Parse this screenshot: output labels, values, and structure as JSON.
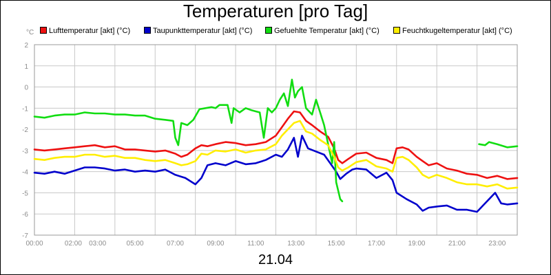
{
  "chart_data": {
    "type": "line",
    "title": "Temperaturen [pro Tag]",
    "y_unit": "°C",
    "xlabel": "21.04",
    "ylim": [
      -7,
      2
    ],
    "yticks": [
      -7,
      -6,
      -5,
      -4,
      -3,
      -2,
      -1,
      0,
      1,
      2
    ],
    "xlim_hours": [
      0,
      24
    ],
    "x_tick_labels": [
      "00:00",
      "02:00",
      "03:00",
      "05:00",
      "07:00",
      "09:00",
      "11:00",
      "13:00",
      "15:00",
      "17:00",
      "19:00",
      "21:00",
      "23:00"
    ],
    "grid": true,
    "legend_position": "top",
    "series": [
      {
        "name": "Lufttemperatur [akt] (°C)",
        "color": "#ee1111",
        "points": [
          [
            0,
            -2.95
          ],
          [
            0.5,
            -3.0
          ],
          [
            1,
            -2.95
          ],
          [
            1.5,
            -2.9
          ],
          [
            2,
            -2.85
          ],
          [
            2.5,
            -2.8
          ],
          [
            3,
            -2.75
          ],
          [
            3.5,
            -2.85
          ],
          [
            4,
            -2.8
          ],
          [
            4.5,
            -2.95
          ],
          [
            5,
            -2.95
          ],
          [
            5.5,
            -3.0
          ],
          [
            6,
            -3.05
          ],
          [
            6.5,
            -3.0
          ],
          [
            7,
            -3.15
          ],
          [
            7.3,
            -3.3
          ],
          [
            7.6,
            -3.2
          ],
          [
            8,
            -2.9
          ],
          [
            8.3,
            -2.75
          ],
          [
            8.6,
            -2.8
          ],
          [
            9,
            -2.7
          ],
          [
            9.5,
            -2.6
          ],
          [
            10,
            -2.65
          ],
          [
            10.5,
            -2.75
          ],
          [
            11,
            -2.7
          ],
          [
            11.5,
            -2.6
          ],
          [
            12,
            -2.3
          ],
          [
            12.3,
            -1.9
          ],
          [
            12.6,
            -1.5
          ],
          [
            12.9,
            -1.15
          ],
          [
            13.2,
            -1.2
          ],
          [
            13.5,
            -1.6
          ],
          [
            13.8,
            -1.8
          ],
          [
            14.2,
            -2.1
          ],
          [
            14.6,
            -2.35
          ],
          [
            14.9,
            -2.9
          ],
          [
            15.1,
            -3.45
          ],
          [
            15.3,
            -3.6
          ],
          [
            15.6,
            -3.4
          ],
          [
            16,
            -3.15
          ],
          [
            16.5,
            -3.1
          ],
          [
            17,
            -3.35
          ],
          [
            17.5,
            -3.45
          ],
          [
            17.8,
            -3.6
          ],
          [
            18,
            -2.9
          ],
          [
            18.3,
            -2.85
          ],
          [
            18.6,
            -2.95
          ],
          [
            19,
            -3.3
          ],
          [
            19.3,
            -3.5
          ],
          [
            19.6,
            -3.7
          ],
          [
            20,
            -3.6
          ],
          [
            20.5,
            -3.85
          ],
          [
            21,
            -3.95
          ],
          [
            21.5,
            -4.1
          ],
          [
            22,
            -4.15
          ],
          [
            22.5,
            -4.3
          ],
          [
            23,
            -4.2
          ],
          [
            23.5,
            -4.35
          ],
          [
            24,
            -4.3
          ]
        ]
      },
      {
        "name": "Taupunkttemperatur [akt] (°C)",
        "color": "#0000cc",
        "points": [
          [
            0,
            -4.05
          ],
          [
            0.5,
            -4.1
          ],
          [
            1,
            -4.0
          ],
          [
            1.5,
            -4.1
          ],
          [
            2,
            -3.95
          ],
          [
            2.5,
            -3.8
          ],
          [
            3,
            -3.8
          ],
          [
            3.5,
            -3.85
          ],
          [
            4,
            -3.95
          ],
          [
            4.5,
            -3.9
          ],
          [
            5,
            -4.0
          ],
          [
            5.5,
            -3.95
          ],
          [
            6,
            -4.0
          ],
          [
            6.5,
            -3.9
          ],
          [
            7,
            -4.15
          ],
          [
            7.5,
            -4.3
          ],
          [
            8,
            -4.6
          ],
          [
            8.3,
            -4.3
          ],
          [
            8.6,
            -3.7
          ],
          [
            9,
            -3.6
          ],
          [
            9.5,
            -3.7
          ],
          [
            10,
            -3.5
          ],
          [
            10.5,
            -3.65
          ],
          [
            11,
            -3.6
          ],
          [
            11.5,
            -3.45
          ],
          [
            12,
            -3.2
          ],
          [
            12.3,
            -3.3
          ],
          [
            12.6,
            -2.95
          ],
          [
            12.9,
            -2.4
          ],
          [
            13.1,
            -3.3
          ],
          [
            13.3,
            -2.3
          ],
          [
            13.6,
            -2.9
          ],
          [
            14,
            -3.05
          ],
          [
            14.4,
            -3.2
          ],
          [
            14.7,
            -3.6
          ],
          [
            15,
            -4.0
          ],
          [
            15.2,
            -4.35
          ],
          [
            15.5,
            -4.1
          ],
          [
            15.8,
            -3.9
          ],
          [
            16,
            -3.85
          ],
          [
            16.5,
            -3.9
          ],
          [
            17,
            -4.3
          ],
          [
            17.5,
            -4.05
          ],
          [
            17.8,
            -4.4
          ],
          [
            18,
            -5.0
          ],
          [
            18.5,
            -5.3
          ],
          [
            19,
            -5.55
          ],
          [
            19.3,
            -5.85
          ],
          [
            19.6,
            -5.7
          ],
          [
            20,
            -5.65
          ],
          [
            20.5,
            -5.6
          ],
          [
            21,
            -5.8
          ],
          [
            21.5,
            -5.8
          ],
          [
            22,
            -5.9
          ],
          [
            22.3,
            -5.6
          ],
          [
            22.6,
            -5.3
          ],
          [
            22.9,
            -5.0
          ],
          [
            23.2,
            -5.5
          ],
          [
            23.5,
            -5.55
          ],
          [
            24,
            -5.5
          ]
        ]
      },
      {
        "name": "Gefuehlte Temperatur [akt] (°C)",
        "color": "#11dd11",
        "segments": [
          [
            [
              0,
              -1.4
            ],
            [
              0.5,
              -1.45
            ],
            [
              1,
              -1.35
            ],
            [
              1.5,
              -1.3
            ],
            [
              2,
              -1.3
            ],
            [
              2.5,
              -1.2
            ],
            [
              3,
              -1.25
            ],
            [
              3.5,
              -1.25
            ],
            [
              4,
              -1.3
            ],
            [
              4.5,
              -1.3
            ],
            [
              5,
              -1.35
            ],
            [
              5.5,
              -1.35
            ],
            [
              6,
              -1.5
            ],
            [
              6.5,
              -1.55
            ],
            [
              6.9,
              -1.6
            ],
            [
              7.0,
              -2.4
            ],
            [
              7.15,
              -2.75
            ],
            [
              7.3,
              -1.7
            ],
            [
              7.6,
              -1.8
            ],
            [
              7.9,
              -1.55
            ],
            [
              8.2,
              -1.05
            ],
            [
              8.5,
              -1.0
            ],
            [
              8.8,
              -0.95
            ],
            [
              9,
              -1.0
            ],
            [
              9.2,
              -0.85
            ],
            [
              9.6,
              -0.85
            ],
            [
              9.8,
              -1.7
            ],
            [
              9.9,
              -1.0
            ],
            [
              10.2,
              -1.2
            ],
            [
              10.5,
              -1.0
            ],
            [
              10.8,
              -1.1
            ],
            [
              11,
              -1.15
            ],
            [
              11.2,
              -1.2
            ],
            [
              11.4,
              -2.4
            ],
            [
              11.6,
              -1.0
            ],
            [
              11.8,
              -1.2
            ],
            [
              12,
              -1.0
            ],
            [
              12.2,
              -0.6
            ],
            [
              12.4,
              -0.3
            ],
            [
              12.6,
              -0.9
            ],
            [
              12.8,
              0.35
            ],
            [
              12.95,
              -0.5
            ],
            [
              13.1,
              -0.2
            ],
            [
              13.3,
              0.0
            ],
            [
              13.5,
              -1.0
            ],
            [
              13.8,
              -1.3
            ],
            [
              14.0,
              -0.6
            ],
            [
              14.2,
              -1.2
            ],
            [
              14.4,
              -1.8
            ],
            [
              14.6,
              -2.7
            ],
            [
              14.8,
              -3.6
            ],
            [
              14.9,
              -2.6
            ],
            [
              15.0,
              -4.5
            ],
            [
              15.2,
              -5.3
            ],
            [
              15.3,
              -5.4
            ]
          ],
          [
            [
              22.1,
              -2.7
            ],
            [
              22.4,
              -2.75
            ],
            [
              22.6,
              -2.6
            ],
            [
              23,
              -2.7
            ],
            [
              23.5,
              -2.85
            ],
            [
              24,
              -2.8
            ]
          ]
        ]
      },
      {
        "name": "Feuchtkugeltemperatur [akt] (°C)",
        "color": "#ffee00",
        "points": [
          [
            0,
            -3.4
          ],
          [
            0.5,
            -3.45
          ],
          [
            1,
            -3.35
          ],
          [
            1.5,
            -3.3
          ],
          [
            2,
            -3.3
          ],
          [
            2.5,
            -3.2
          ],
          [
            3,
            -3.2
          ],
          [
            3.5,
            -3.3
          ],
          [
            4,
            -3.25
          ],
          [
            4.5,
            -3.35
          ],
          [
            5,
            -3.35
          ],
          [
            5.5,
            -3.45
          ],
          [
            6,
            -3.5
          ],
          [
            6.5,
            -3.45
          ],
          [
            7,
            -3.6
          ],
          [
            7.3,
            -3.7
          ],
          [
            7.6,
            -3.65
          ],
          [
            8,
            -3.5
          ],
          [
            8.3,
            -3.15
          ],
          [
            8.6,
            -3.2
          ],
          [
            9,
            -3.0
          ],
          [
            9.5,
            -3.05
          ],
          [
            10,
            -2.95
          ],
          [
            10.5,
            -3.1
          ],
          [
            11,
            -3.0
          ],
          [
            11.5,
            -2.95
          ],
          [
            12,
            -2.7
          ],
          [
            12.3,
            -2.3
          ],
          [
            12.6,
            -2.0
          ],
          [
            12.9,
            -1.7
          ],
          [
            13.2,
            -1.6
          ],
          [
            13.5,
            -2.1
          ],
          [
            13.8,
            -2.2
          ],
          [
            14.2,
            -2.5
          ],
          [
            14.6,
            -2.75
          ],
          [
            14.9,
            -3.3
          ],
          [
            15.1,
            -3.8
          ],
          [
            15.3,
            -3.95
          ],
          [
            15.6,
            -3.8
          ],
          [
            16,
            -3.55
          ],
          [
            16.5,
            -3.45
          ],
          [
            17,
            -3.75
          ],
          [
            17.5,
            -3.85
          ],
          [
            17.8,
            -4.0
          ],
          [
            18,
            -3.35
          ],
          [
            18.3,
            -3.3
          ],
          [
            18.6,
            -3.45
          ],
          [
            19,
            -3.8
          ],
          [
            19.3,
            -4.15
          ],
          [
            19.6,
            -4.3
          ],
          [
            20,
            -4.15
          ],
          [
            20.5,
            -4.3
          ],
          [
            21,
            -4.5
          ],
          [
            21.5,
            -4.6
          ],
          [
            22,
            -4.6
          ],
          [
            22.5,
            -4.7
          ],
          [
            23,
            -4.6
          ],
          [
            23.5,
            -4.8
          ],
          [
            24,
            -4.75
          ]
        ]
      }
    ]
  }
}
